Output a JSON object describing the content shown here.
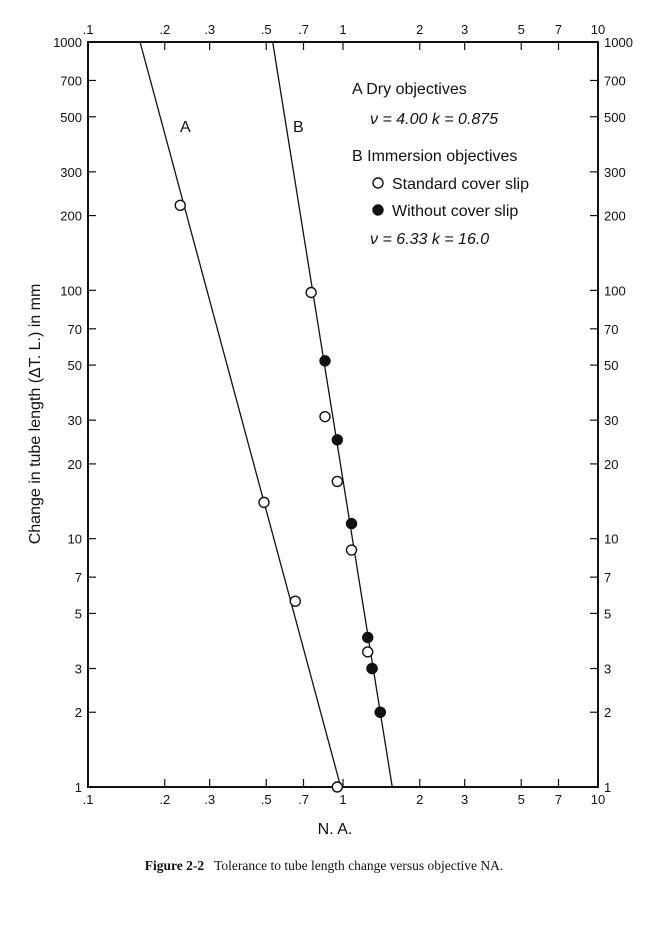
{
  "chart_data": {
    "type": "scatter",
    "scale": "log-log",
    "xlabel": "N. A.",
    "ylabel": "Change in tube length (ΔT. L.) in mm",
    "xlim": [
      0.1,
      10
    ],
    "ylim": [
      1,
      1000
    ],
    "x_ticks": [
      {
        "value": 0.1,
        "label": ".1"
      },
      {
        "value": 0.2,
        "label": ".2"
      },
      {
        "value": 0.3,
        "label": ".3"
      },
      {
        "value": 0.5,
        "label": ".5"
      },
      {
        "value": 0.7,
        "label": ".7"
      },
      {
        "value": 1,
        "label": "1"
      },
      {
        "value": 2,
        "label": "2"
      },
      {
        "value": 3,
        "label": "3"
      },
      {
        "value": 5,
        "label": "5"
      },
      {
        "value": 7,
        "label": "7"
      },
      {
        "value": 10,
        "label": "10"
      }
    ],
    "y_ticks": [
      {
        "value": 1,
        "label": "1"
      },
      {
        "value": 2,
        "label": "2"
      },
      {
        "value": 3,
        "label": "3"
      },
      {
        "value": 5,
        "label": "5"
      },
      {
        "value": 7,
        "label": "7"
      },
      {
        "value": 10,
        "label": "10"
      },
      {
        "value": 20,
        "label": "20"
      },
      {
        "value": 30,
        "label": "30"
      },
      {
        "value": 50,
        "label": "50"
      },
      {
        "value": 70,
        "label": "70"
      },
      {
        "value": 100,
        "label": "100"
      },
      {
        "value": 200,
        "label": "200"
      },
      {
        "value": 300,
        "label": "300"
      },
      {
        "value": 500,
        "label": "500"
      },
      {
        "value": 700,
        "label": "700"
      },
      {
        "value": 1000,
        "label": "1000"
      }
    ],
    "lines": [
      {
        "name": "A",
        "label": "A",
        "x": [
          0.16,
          0.98
        ],
        "y": [
          1000,
          1
        ]
      },
      {
        "name": "B",
        "label": "B",
        "x": [
          0.53,
          1.56
        ],
        "y": [
          1000,
          1
        ]
      }
    ],
    "series": [
      {
        "name": "A Dry objectives",
        "marker": "open",
        "points": [
          [
            0.23,
            220
          ],
          [
            0.49,
            14
          ],
          [
            0.65,
            5.6
          ],
          [
            0.95,
            1.0
          ]
        ]
      },
      {
        "name": "B Immersion objectives — Standard cover slip",
        "marker": "open",
        "points": [
          [
            0.75,
            98
          ],
          [
            0.85,
            31
          ],
          [
            0.95,
            17
          ],
          [
            1.08,
            9
          ],
          [
            1.25,
            3.5
          ],
          [
            1.3,
            3.0
          ],
          [
            1.4,
            2.0
          ]
        ]
      },
      {
        "name": "B Immersion objectives — Without cover slip",
        "marker": "filled",
        "points": [
          [
            0.85,
            52
          ],
          [
            0.95,
            25
          ],
          [
            1.08,
            11.5
          ],
          [
            1.25,
            4.0
          ],
          [
            1.3,
            3.0
          ],
          [
            1.4,
            2.0
          ]
        ]
      }
    ],
    "legend": {
      "position": "top-right",
      "a_title": "A  Dry objectives",
      "a_params": "ν =   4.00   k = 0.875",
      "b_title": "B  Immersion objectives",
      "b_open": "Standard cover slip",
      "b_filled": "Without cover slip",
      "b_params": "ν =   6.33   k = 16.0"
    }
  },
  "caption": {
    "label": "Figure 2-2",
    "text": "Tolerance to tube length change versus objective NA."
  }
}
